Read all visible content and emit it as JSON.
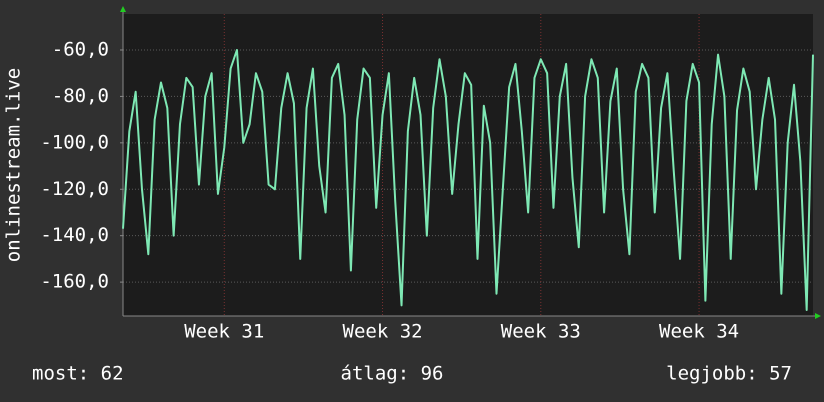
{
  "chart_data": {
    "type": "line",
    "y_label": "onlinestream.live",
    "x": [
      30.36,
      30.4,
      30.44,
      30.48,
      30.52,
      30.56,
      30.6,
      30.64,
      30.68,
      30.72,
      30.76,
      30.8,
      30.84,
      30.88,
      30.92,
      30.96,
      31,
      31.04,
      31.08,
      31.12,
      31.16,
      31.2,
      31.24,
      31.28,
      31.32,
      31.36,
      31.4,
      31.44,
      31.48,
      31.52,
      31.56,
      31.6,
      31.64,
      31.68,
      31.72,
      31.76,
      31.8,
      31.84,
      31.88,
      31.92,
      31.96,
      32,
      32.04,
      32.08,
      32.12,
      32.16,
      32.2,
      32.24,
      32.28,
      32.32,
      32.36,
      32.4,
      32.44,
      32.48,
      32.52,
      32.56,
      32.6,
      32.64,
      32.68,
      32.72,
      32.76,
      32.8,
      32.84,
      32.88,
      32.92,
      32.96,
      33,
      33.04,
      33.08,
      33.12,
      33.16,
      33.2,
      33.24,
      33.28,
      33.32,
      33.36,
      33.4,
      33.44,
      33.48,
      33.52,
      33.56,
      33.6,
      33.64,
      33.68,
      33.72,
      33.76,
      33.8,
      33.84,
      33.88,
      33.92,
      33.96,
      34,
      34.04,
      34.08,
      34.12,
      34.16,
      34.2,
      34.24,
      34.28,
      34.32,
      34.36,
      34.4,
      34.44,
      34.48,
      34.52,
      34.56,
      34.6,
      34.64,
      34.68,
      34.72
    ],
    "series": [
      {
        "color": "#7ee8b4",
        "values": [
          -137,
          -95,
          -78,
          -120,
          -148,
          -90,
          -74,
          -85,
          -140,
          -92,
          -72,
          -76,
          -118,
          -80,
          -70,
          -122,
          -102,
          -68,
          -60,
          -100,
          -92,
          -70,
          -78,
          -118,
          -120,
          -85,
          -70,
          -83,
          -150,
          -85,
          -68,
          -110,
          -130,
          -72,
          -66,
          -88,
          -155,
          -90,
          -68,
          -72,
          -128,
          -88,
          -70,
          -125,
          -170,
          -95,
          -72,
          -88,
          -140,
          -85,
          -64,
          -80,
          -122,
          -92,
          -70,
          -75,
          -150,
          -84,
          -100,
          -165,
          -120,
          -76,
          -66,
          -95,
          -130,
          -72,
          -64,
          -70,
          -128,
          -80,
          -66,
          -115,
          -145,
          -80,
          -64,
          -72,
          -130,
          -82,
          -68,
          -120,
          -148,
          -78,
          -66,
          -72,
          -130,
          -85,
          -70,
          -112,
          -150,
          -82,
          -66,
          -74,
          -168,
          -92,
          -62,
          -80,
          -150,
          -86,
          -68,
          -78,
          -120,
          -90,
          -72,
          -90,
          -165,
          -100,
          -75,
          -108,
          -172,
          -62
        ]
      }
    ],
    "xlim": [
      30.36,
      34.72
    ],
    "xticks": [
      {
        "value": 31,
        "label": "Week 31"
      },
      {
        "value": 32,
        "label": "Week 32"
      },
      {
        "value": 33,
        "label": "Week 33"
      },
      {
        "value": 34,
        "label": "Week 34"
      }
    ],
    "ylim": [
      -174.6,
      -44.5
    ],
    "yticks": [
      {
        "value": -60,
        "label": "-60,0"
      },
      {
        "value": -80,
        "label": "-80,0"
      },
      {
        "value": -100,
        "label": "-100,0"
      },
      {
        "value": -120,
        "label": "-120,0"
      },
      {
        "value": -140,
        "label": "-140,0"
      },
      {
        "value": -160,
        "label": "-160,0"
      }
    ],
    "grid": true,
    "footer": [
      "most: 62",
      "átlag: 96",
      "legjobb: 57"
    ]
  }
}
